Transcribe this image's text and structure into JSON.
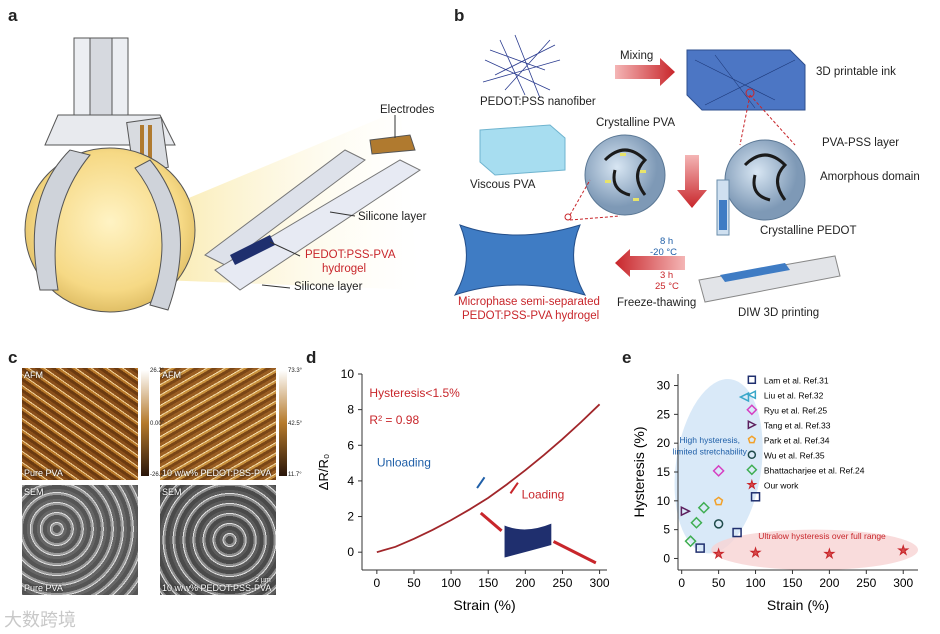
{
  "panels": {
    "a": "a",
    "b": "b",
    "c": "c",
    "d": "d",
    "e": "e"
  },
  "panel_a": {
    "electrodes": "Electrodes",
    "silicone_layer_top": "Silicone layer",
    "hydrogel_line1": "PEDOT:PSS-PVA",
    "hydrogel_line2": "hydrogel",
    "silicone_layer_bottom": "Silicone layer"
  },
  "panel_b": {
    "nanofiber": "PEDOT:PSS nanofiber",
    "mixing": "Mixing",
    "ink": "3D printable ink",
    "viscous_pva": "Viscous PVA",
    "crystalline_pva": "Crystalline PVA",
    "pva_pss_layer": "PVA-PSS layer",
    "amorphous": "Amorphous domain",
    "crystalline_pedot": "Crystalline PEDOT",
    "cycle_cold_time": "8 h",
    "cycle_cold_temp": "-20 °C",
    "cycle_warm_time": "3 h",
    "cycle_warm_temp": "25 °C",
    "freeze_thawing": "Freeze-thawing",
    "diw": "DIW 3D printing",
    "microphase_line1": "Microphase semi-separated",
    "microphase_line2": "PEDOT:PSS-PVA hydrogel"
  },
  "panel_c": {
    "afm": "AFM",
    "sem": "SEM",
    "pure_pva": "Pure PVA",
    "pedot_pva": "10 w/w% PEDOT:PSS-PVA",
    "scale1_top": "26.2°",
    "scale1_mid": "0.00°",
    "scale1_bot": "-26.2°",
    "scale2_top": "73.3°",
    "scale2_mid": "42.5°",
    "scale2_bot": "11.7°",
    "scalebar": "2 µm"
  },
  "panel_d": {
    "chart_data": {
      "type": "line",
      "xlabel": "Strain (%)",
      "ylabel": "ΔR/R₀",
      "xticks": [
        0,
        50,
        100,
        150,
        200,
        250,
        300
      ],
      "yticks": [
        0,
        2,
        4,
        6,
        8,
        10
      ],
      "xlim": [
        -20,
        310
      ],
      "ylim": [
        -1,
        10
      ],
      "annotation_hysteresis": "Hysteresis<1.5%",
      "annotation_r2": "R² = 0.98",
      "unloading": "Unloading",
      "loading": "Loading",
      "series": [
        {
          "x": [
            0,
            25,
            50,
            75,
            100,
            125,
            150,
            175,
            200,
            225,
            250,
            275,
            300
          ],
          "values": [
            0,
            0.3,
            0.75,
            1.25,
            1.8,
            2.4,
            3.05,
            3.8,
            4.6,
            5.45,
            6.35,
            7.3,
            8.3
          ]
        }
      ],
      "colors": {
        "line": "#a1262a"
      }
    }
  },
  "panel_e": {
    "chart_data": {
      "type": "scatter",
      "xlabel": "Strain (%)",
      "ylabel": "Hysteresis (%)",
      "xticks": [
        0,
        50,
        100,
        150,
        200,
        250,
        300
      ],
      "yticks": [
        0,
        5,
        10,
        15,
        20,
        25,
        30
      ],
      "xlim": [
        -5,
        320
      ],
      "ylim": [
        -2,
        32
      ],
      "legend_position": "top-right",
      "high_region_label_1": "High hysteresis,",
      "high_region_label_2": "limited stretchability",
      "low_region_label": "Ultralow hysteresis over full range",
      "series": [
        {
          "name": "Lam et al. Ref.31",
          "marker": "square",
          "color": "#1f2f6e",
          "points": [
            [
              25,
              1.8
            ],
            [
              75,
              4.5
            ],
            [
              100,
              10.7
            ]
          ]
        },
        {
          "name": "Liu et al. Ref.32",
          "marker": "triangle-left",
          "color": "#3aa7c9",
          "points": [
            [
              85,
              28
            ]
          ]
        },
        {
          "name": "Ryu et al. Ref.25",
          "marker": "diamond",
          "color": "#d63fc2",
          "points": [
            [
              50,
              15.2
            ]
          ]
        },
        {
          "name": "Tang et al. Ref.33",
          "marker": "triangle-right",
          "color": "#5c1f5e",
          "points": [
            [
              5,
              8.2
            ]
          ]
        },
        {
          "name": "Park et al. Ref.34",
          "marker": "pentagon",
          "color": "#f2a12a",
          "points": [
            [
              50,
              9.9
            ]
          ]
        },
        {
          "name": "Wu et al. Ref.35",
          "marker": "circle",
          "color": "#1f4b4b",
          "points": [
            [
              50,
              6.0
            ]
          ]
        },
        {
          "name": "Bhattacharjee et al. Ref.24",
          "marker": "diamond",
          "color": "#3fae52",
          "points": [
            [
              12,
              3.0
            ],
            [
              20,
              6.2
            ],
            [
              30,
              8.8
            ]
          ]
        },
        {
          "name": "Our work",
          "marker": "star",
          "color": "#c8262b",
          "points": [
            [
              50,
              0.8
            ],
            [
              100,
              1.0
            ],
            [
              200,
              0.8
            ],
            [
              300,
              1.4
            ]
          ]
        }
      ]
    }
  },
  "watermark": "大数跨境"
}
